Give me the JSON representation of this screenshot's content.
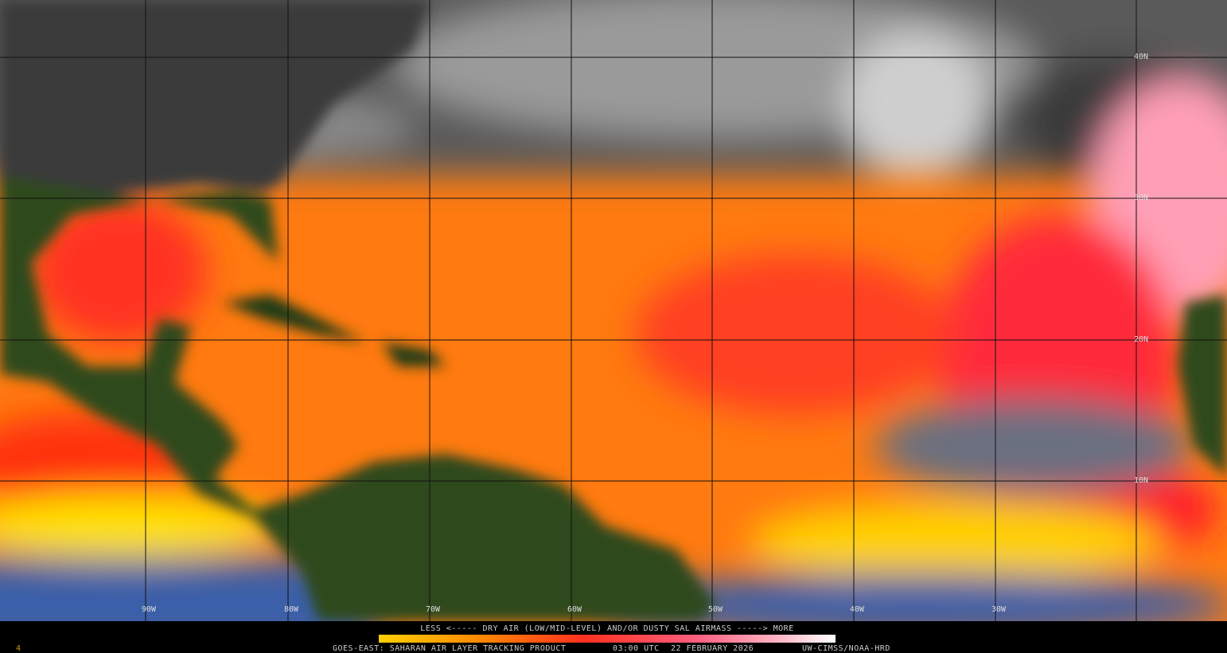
{
  "legend": {
    "caption": "LESS <----- DRY AIR (LOW/MID-LEVEL) AND/OR DUSTY SAL AIRMASS -----> MORE"
  },
  "footer": {
    "corner": "4",
    "product": "GOES-EAST: SAHARAN AIR LAYER TRACKING PRODUCT",
    "time": "03:00 UTC",
    "date": "22 FEBRUARY 2026",
    "credit": "UW-CIMSS/NOAA-HRD"
  },
  "grid": {
    "latitudes": [
      "40N",
      "30N",
      "20N",
      "10N"
    ],
    "longitudes": [
      "90W",
      "80W",
      "70W",
      "60W",
      "50W",
      "40W",
      "30W"
    ]
  }
}
